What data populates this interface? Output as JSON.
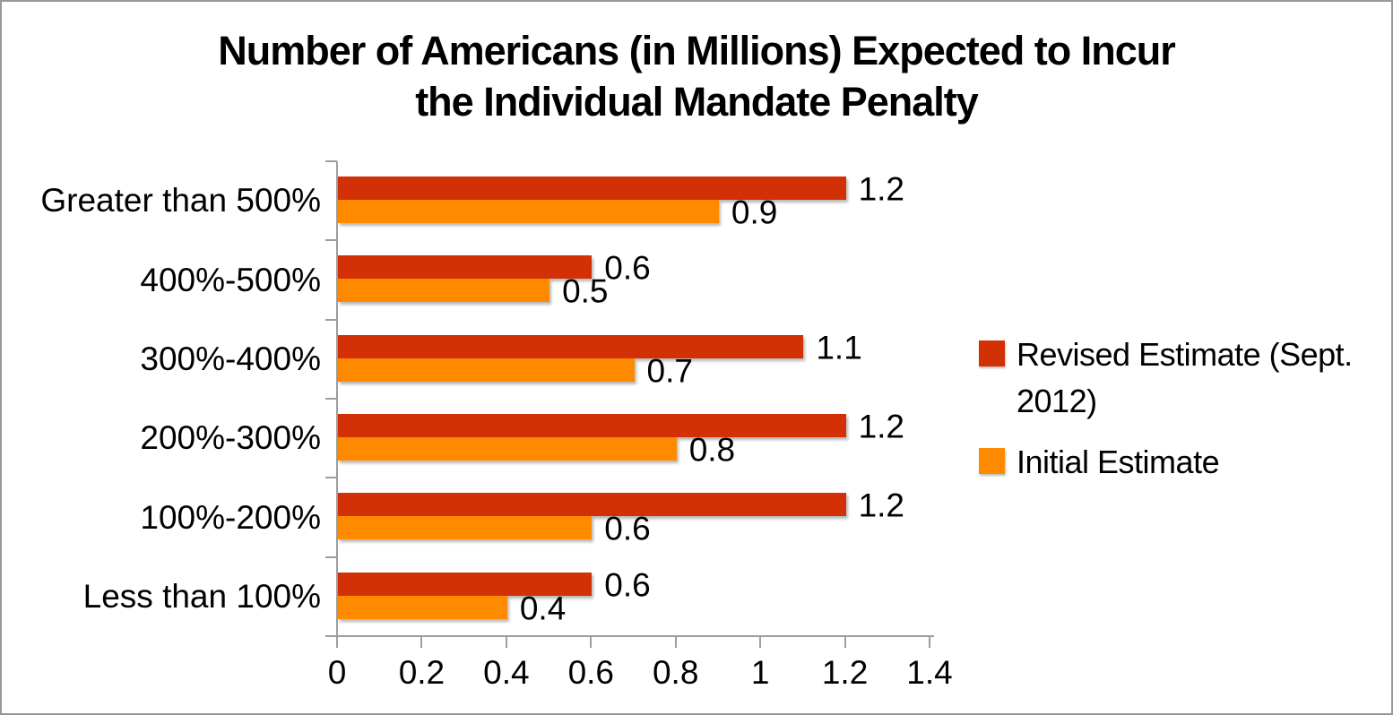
{
  "frame": {
    "background_color": "#ffffff",
    "border_color": "#989898"
  },
  "chart_data": {
    "type": "bar",
    "orientation": "horizontal",
    "title": "Number of Americans (in Millions) Expected to Incur the Individual Mandate Penalty",
    "title_lines": [
      "Number of Americans (in Millions) Expected to Incur",
      "the Individual Mandate Penalty"
    ],
    "categories": [
      "Greater than 500%",
      "400%-500%",
      "300%-400%",
      "200%-300%",
      "100%-200%",
      "Less than 100%"
    ],
    "series": [
      {
        "name": "Revised Estimate (Sept. 2012)",
        "legend_lines": [
          "Revised Estimate (Sept.",
          "2012)"
        ],
        "color": "#d33005",
        "values": [
          1.2,
          0.6,
          1.1,
          1.2,
          1.2,
          0.6
        ]
      },
      {
        "name": "Initial Estimate",
        "legend_lines": [
          "Initial Estimate"
        ],
        "color": "#ff8a00",
        "values": [
          0.9,
          0.5,
          0.7,
          0.8,
          0.6,
          0.4
        ]
      }
    ],
    "value_labels_shown": true,
    "xlim": [
      0,
      1.4
    ],
    "x_ticks": [
      "0",
      "0.2",
      "0.4",
      "0.6",
      "0.8",
      "1",
      "1.2",
      "1.4"
    ],
    "legend_position": "right",
    "grid": false,
    "axis_color": "#9d9d9d",
    "text_color": "#000000"
  }
}
